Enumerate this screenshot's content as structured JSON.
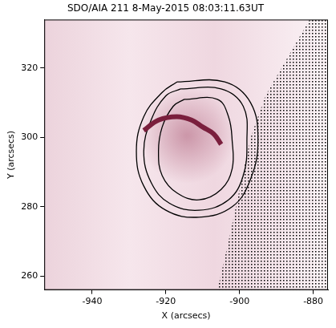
{
  "chart_data": {
    "type": "scatter",
    "title": "SDO/AIA 211 8-May-2015 08:03:11.63UT",
    "x_label": "X (arcsecs)",
    "y_label": "Y (arcsecs)",
    "xlim": [
      -953,
      -876
    ],
    "ylim": [
      256,
      334
    ],
    "xticks": [
      -940,
      -920,
      -900,
      -880
    ],
    "yticks": [
      260,
      280,
      300,
      320
    ],
    "grid": false,
    "series": [
      {
        "type": "region",
        "marker": "dot",
        "color": "#000000",
        "x": [
          -906,
          -903,
          -900,
          -897,
          -893,
          -887,
          -881
        ],
        "y": [
          256,
          270,
          285,
          300,
          312,
          323,
          334
        ]
      },
      {
        "type": "line",
        "line_style": "solid",
        "color": "#7a1f3d",
        "x": [
          -926,
          -922,
          -917,
          -913,
          -910,
          -907,
          -905
        ],
        "y": [
          302,
          305,
          306,
          305,
          303,
          301,
          298
        ]
      },
      {
        "type": "line",
        "line_style": "solid",
        "color": "#000000",
        "x": [
          -915,
          -906,
          -903,
          -902,
          -902,
          -905,
          -911,
          -917,
          -921,
          -922,
          -921,
          -918,
          -915
        ],
        "y": [
          311,
          311,
          306,
          299,
          291,
          285,
          282,
          284,
          289,
          296,
          303,
          309,
          311
        ]
      },
      {
        "type": "line",
        "line_style": "solid",
        "color": "#000000",
        "x": [
          -916,
          -905,
          -899,
          -898,
          -899,
          -903,
          -911,
          -919,
          -924,
          -926,
          -924,
          -920,
          -916
        ],
        "y": [
          314,
          314,
          309,
          299,
          289,
          282,
          279,
          281,
          287,
          296,
          305,
          312,
          314
        ]
      },
      {
        "type": "line",
        "line_style": "solid",
        "color": "#000000",
        "x": [
          -917,
          -904,
          -897,
          -895,
          -897,
          -902,
          -911,
          -920,
          -926,
          -928,
          -926,
          -921,
          -917
        ],
        "y": [
          316,
          316,
          310,
          299,
          288,
          280,
          277,
          279,
          286,
          296,
          306,
          313,
          316
        ]
      }
    ]
  }
}
